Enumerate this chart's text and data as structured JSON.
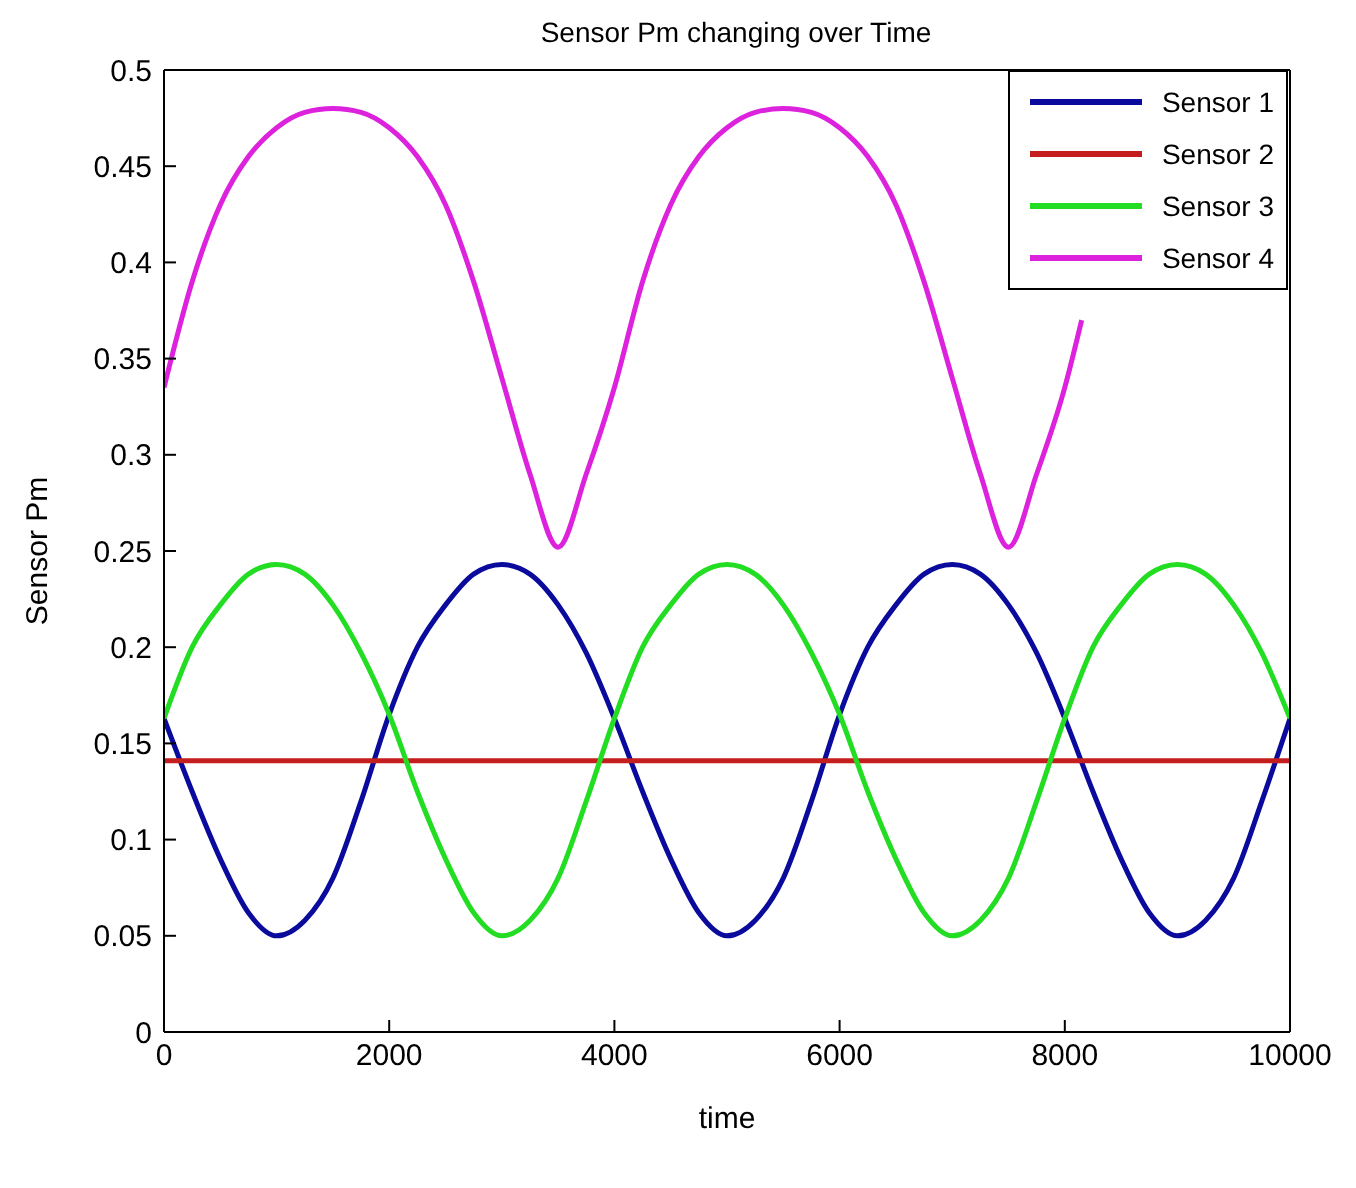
{
  "chart_data": {
    "type": "line",
    "title": "Sensor Pm changing over Time",
    "xlabel": "time",
    "ylabel": "Sensor Pm",
    "xlim": [
      0,
      10000
    ],
    "xticks": [
      0,
      2000,
      4000,
      6000,
      8000,
      10000
    ],
    "ylim": [
      0,
      0.5
    ],
    "yticks": [
      0,
      0.05,
      0.1,
      0.15,
      0.2,
      0.25,
      0.3,
      0.35,
      0.4,
      0.45,
      0.5
    ],
    "grid": false,
    "legend": "top right",
    "marker": "none",
    "line_style": "solid",
    "series": [
      {
        "name": "Sensor 1",
        "color": "#0a0a9c",
        "x": [
          0,
          250,
          500,
          750,
          1000,
          1250,
          1500,
          1750,
          2000,
          2250,
          2500,
          2750,
          3000,
          3250,
          3500,
          3750,
          4000,
          4250,
          4500,
          4750,
          5000,
          5250,
          5500,
          5750,
          6000,
          6250,
          6500,
          6750,
          7000,
          7250,
          7500,
          7750,
          8000,
          8250,
          8500,
          8750,
          9000,
          9250,
          9500,
          9750,
          10000
        ],
        "values": [
          0.163,
          0.125,
          0.09,
          0.062,
          0.05,
          0.058,
          0.08,
          0.12,
          0.165,
          0.2,
          0.222,
          0.238,
          0.243,
          0.238,
          0.222,
          0.197,
          0.163,
          0.125,
          0.09,
          0.062,
          0.05,
          0.058,
          0.08,
          0.12,
          0.165,
          0.2,
          0.222,
          0.238,
          0.243,
          0.238,
          0.222,
          0.197,
          0.163,
          0.125,
          0.09,
          0.062,
          0.05,
          0.058,
          0.08,
          0.12,
          0.163
        ]
      },
      {
        "name": "Sensor 2",
        "color": "#c41e1e",
        "x": [
          0,
          10000
        ],
        "values": [
          0.141,
          0.141
        ]
      },
      {
        "name": "Sensor 3",
        "color": "#22dd22",
        "x": [
          0,
          250,
          500,
          750,
          1000,
          1250,
          1500,
          1750,
          2000,
          2250,
          2500,
          2750,
          3000,
          3250,
          3500,
          3750,
          4000,
          4250,
          4500,
          4750,
          5000,
          5250,
          5500,
          5750,
          6000,
          6250,
          6500,
          6750,
          7000,
          7250,
          7500,
          7750,
          8000,
          8250,
          8500,
          8750,
          9000,
          9250,
          9500,
          9750,
          10000
        ],
        "values": [
          0.163,
          0.2,
          0.222,
          0.238,
          0.243,
          0.238,
          0.222,
          0.197,
          0.165,
          0.125,
          0.09,
          0.062,
          0.05,
          0.058,
          0.08,
          0.12,
          0.163,
          0.2,
          0.222,
          0.238,
          0.243,
          0.238,
          0.222,
          0.197,
          0.165,
          0.125,
          0.09,
          0.062,
          0.05,
          0.058,
          0.08,
          0.12,
          0.163,
          0.2,
          0.222,
          0.238,
          0.243,
          0.238,
          0.222,
          0.197,
          0.163
        ]
      },
      {
        "name": "Sensor 4",
        "color": "#dd22dd",
        "x": [
          0,
          250,
          500,
          750,
          1000,
          1250,
          1500,
          1750,
          2000,
          2250,
          2500,
          2750,
          3000,
          3250,
          3500,
          3750,
          4000,
          4250,
          4500,
          4750,
          5000,
          5250,
          5500,
          5750,
          6000,
          6250,
          6500,
          6750,
          7000,
          7250,
          7500,
          7750,
          8000,
          8150
        ],
        "values": [
          0.335,
          0.39,
          0.43,
          0.455,
          0.47,
          0.478,
          0.48,
          0.478,
          0.47,
          0.455,
          0.43,
          0.39,
          0.34,
          0.29,
          0.252,
          0.29,
          0.335,
          0.39,
          0.43,
          0.455,
          0.47,
          0.478,
          0.48,
          0.478,
          0.47,
          0.455,
          0.43,
          0.39,
          0.34,
          0.29,
          0.252,
          0.29,
          0.335,
          0.37
        ]
      }
    ]
  }
}
